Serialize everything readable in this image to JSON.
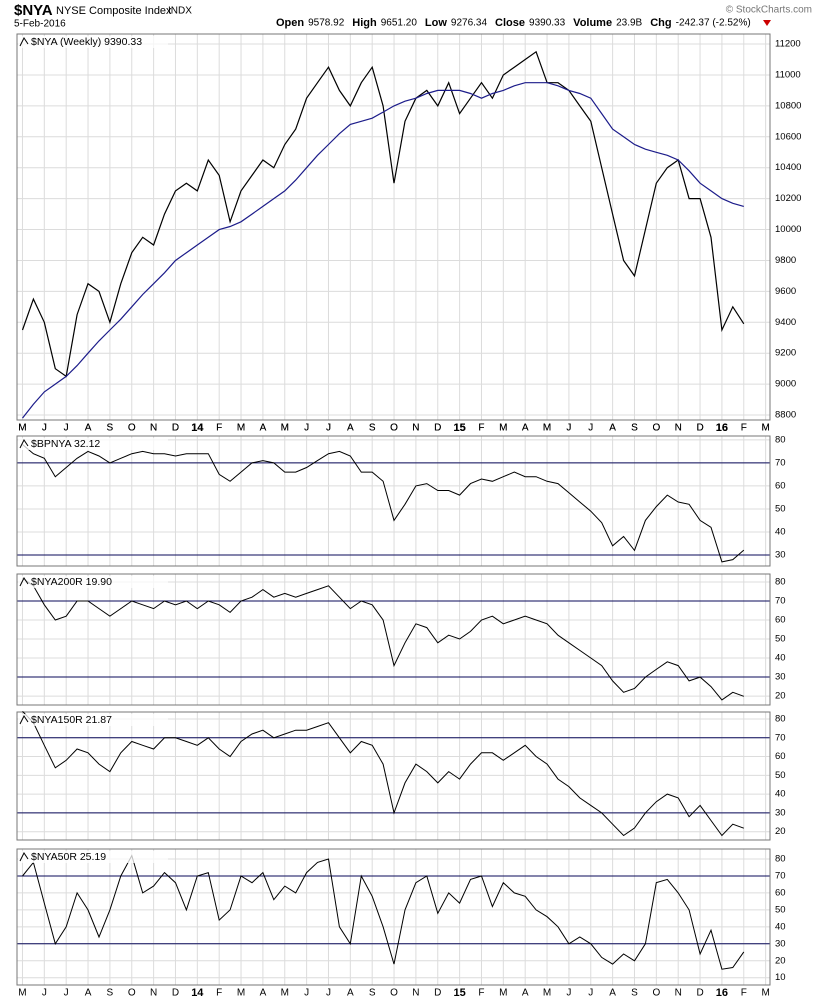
{
  "header": {
    "symbol": "$NYA",
    "name": "NYSE Composite Index",
    "exchange": "INDX",
    "date": "5-Feb-2016",
    "credit": "© StockCharts.com",
    "stats": [
      {
        "label": "Open",
        "value": "9578.92"
      },
      {
        "label": "High",
        "value": "9651.20"
      },
      {
        "label": "Low",
        "value": "9276.34"
      },
      {
        "label": "Close",
        "value": "9390.33"
      },
      {
        "label": "Volume",
        "value": "23.9B"
      },
      {
        "label": "Chg",
        "value": "-242.37 (-2.52%)"
      }
    ]
  },
  "chart_data": [
    {
      "type": "line",
      "label": "$NYA (Weekly) 9390.33",
      "x": [
        0,
        0.5,
        1,
        1.5,
        2,
        2.5,
        3,
        3.5,
        4,
        4.5,
        5,
        5.5,
        6,
        6.5,
        7,
        7.5,
        8,
        8.5,
        9,
        9.5,
        10,
        10.5,
        11,
        11.5,
        12,
        12.5,
        13,
        13.5,
        14,
        14.5,
        15,
        15.5,
        16,
        16.5,
        17,
        17.5,
        18,
        18.5,
        19,
        19.5,
        20,
        20.5,
        21,
        21.5,
        22,
        22.5,
        23,
        23.5,
        24,
        24.5,
        25,
        25.5,
        26,
        26.5,
        27,
        27.5,
        28,
        28.5,
        29,
        29.5,
        30,
        30.5,
        31,
        31.5,
        32,
        32.5,
        33
      ],
      "xlim": [
        -0.25,
        34.2
      ],
      "xticks": [
        {
          "value": 0,
          "label": "M"
        },
        {
          "value": 1,
          "label": "J"
        },
        {
          "value": 2,
          "label": "J"
        },
        {
          "value": 3,
          "label": "A"
        },
        {
          "value": 4,
          "label": "S"
        },
        {
          "value": 5,
          "label": "O"
        },
        {
          "value": 6,
          "label": "N"
        },
        {
          "value": 7,
          "label": "D"
        },
        {
          "value": 8,
          "label": "14"
        },
        {
          "value": 9,
          "label": "F"
        },
        {
          "value": 10,
          "label": "M"
        },
        {
          "value": 11,
          "label": "A"
        },
        {
          "value": 12,
          "label": "M"
        },
        {
          "value": 13,
          "label": "J"
        },
        {
          "value": 14,
          "label": "J"
        },
        {
          "value": 15,
          "label": "A"
        },
        {
          "value": 16,
          "label": "S"
        },
        {
          "value": 17,
          "label": "O"
        },
        {
          "value": 18,
          "label": "N"
        },
        {
          "value": 19,
          "label": "D"
        },
        {
          "value": 20,
          "label": "15"
        },
        {
          "value": 21,
          "label": "F"
        },
        {
          "value": 22,
          "label": "M"
        },
        {
          "value": 23,
          "label": "A"
        },
        {
          "value": 24,
          "label": "M"
        },
        {
          "value": 25,
          "label": "J"
        },
        {
          "value": 26,
          "label": "J"
        },
        {
          "value": 27,
          "label": "A"
        },
        {
          "value": 28,
          "label": "S"
        },
        {
          "value": 29,
          "label": "O"
        },
        {
          "value": 30,
          "label": "N"
        },
        {
          "value": 31,
          "label": "D"
        },
        {
          "value": 32,
          "label": "16"
        },
        {
          "value": 33,
          "label": "F"
        },
        {
          "value": 34,
          "label": "M"
        }
      ],
      "ylim": [
        8768,
        11265
      ],
      "yticks": [
        8800,
        9000,
        9200,
        9400,
        9600,
        9800,
        10000,
        10200,
        10400,
        10600,
        10800,
        11000,
        11200
      ],
      "grid": true,
      "series": [
        {
          "name": "Close",
          "color": "#000000",
          "values": [
            9350,
            9550,
            9400,
            9100,
            9050,
            9450,
            9650,
            9600,
            9400,
            9650,
            9850,
            9950,
            9900,
            10100,
            10250,
            10300,
            10250,
            10450,
            10350,
            10050,
            10250,
            10350,
            10450,
            10400,
            10550,
            10650,
            10850,
            10950,
            11050,
            10900,
            10800,
            10950,
            11050,
            10800,
            10300,
            10700,
            10850,
            10900,
            10800,
            10950,
            10750,
            10850,
            10950,
            10850,
            11000,
            11050,
            11100,
            11150,
            10950,
            10950,
            10900,
            10800,
            10700,
            10400,
            10100,
            9800,
            9700,
            10000,
            10300,
            10400,
            10450,
            10200,
            10200,
            9950,
            9350,
            9500,
            9390.33
          ]
        },
        {
          "name": "MA",
          "color": "#1c1c8a",
          "values": [
            8780,
            8870,
            8950,
            9000,
            9050,
            9120,
            9200,
            9280,
            9350,
            9420,
            9500,
            9580,
            9650,
            9720,
            9800,
            9850,
            9900,
            9950,
            10000,
            10020,
            10050,
            10100,
            10150,
            10200,
            10250,
            10320,
            10400,
            10480,
            10550,
            10620,
            10680,
            10700,
            10720,
            10760,
            10800,
            10830,
            10850,
            10880,
            10900,
            10900,
            10900,
            10880,
            10850,
            10880,
            10900,
            10930,
            10950,
            10950,
            10950,
            10930,
            10900,
            10880,
            10850,
            10750,
            10650,
            10600,
            10550,
            10520,
            10500,
            10480,
            10450,
            10380,
            10300,
            10250,
            10200,
            10170,
            10150
          ]
        }
      ]
    },
    {
      "type": "line",
      "label": "$BPNYA 32.12",
      "x": [
        0,
        0.5,
        1,
        1.5,
        2,
        2.5,
        3,
        3.5,
        4,
        4.5,
        5,
        5.5,
        6,
        6.5,
        7,
        7.5,
        8,
        8.5,
        9,
        9.5,
        10,
        10.5,
        11,
        11.5,
        12,
        12.5,
        13,
        13.5,
        14,
        14.5,
        15,
        15.5,
        16,
        16.5,
        17,
        17.5,
        18,
        18.5,
        19,
        19.5,
        20,
        20.5,
        21,
        21.5,
        22,
        22.5,
        23,
        23.5,
        24,
        24.5,
        25,
        25.5,
        26,
        26.5,
        27,
        27.5,
        28,
        28.5,
        29,
        29.5,
        30,
        30.5,
        31,
        31.5,
        32,
        32.5,
        33
      ],
      "xlim": [
        -0.25,
        34.2
      ],
      "ylim": [
        25.2,
        81.7
      ],
      "yticks": [
        30,
        40,
        50,
        60,
        70,
        80
      ],
      "levels": [
        70,
        30
      ],
      "level_color": "#0a0a5a",
      "series": [
        {
          "name": "$BPNYA",
          "color": "#000000",
          "values": [
            78,
            74,
            72,
            64,
            68,
            72,
            75,
            73,
            70,
            72,
            74,
            75,
            74,
            74,
            73,
            74,
            74,
            74,
            65,
            62,
            66,
            70,
            71,
            70,
            66,
            66,
            68,
            71,
            74,
            75,
            73,
            66,
            66,
            62,
            45,
            52,
            60,
            61,
            58,
            58,
            56,
            61,
            63,
            62,
            64,
            66,
            64,
            64,
            62,
            61,
            57,
            53,
            49,
            44,
            34,
            38,
            32,
            45,
            51,
            56,
            53,
            52,
            45,
            42,
            27,
            28,
            32.12
          ]
        }
      ]
    },
    {
      "type": "line",
      "label": "$NYA200R 19.90",
      "x": [
        0,
        0.5,
        1,
        1.5,
        2,
        2.5,
        3,
        3.5,
        4,
        4.5,
        5,
        5.5,
        6,
        6.5,
        7,
        7.5,
        8,
        8.5,
        9,
        9.5,
        10,
        10.5,
        11,
        11.5,
        12,
        12.5,
        13,
        13.5,
        14,
        14.5,
        15,
        15.5,
        16,
        16.5,
        17,
        17.5,
        18,
        18.5,
        19,
        19.5,
        20,
        20.5,
        21,
        21.5,
        22,
        22.5,
        23,
        23.5,
        24,
        24.5,
        25,
        25.5,
        26,
        26.5,
        27,
        27.5,
        28,
        28.5,
        29,
        29.5,
        30,
        30.5,
        31,
        31.5,
        32,
        32.5,
        33
      ],
      "xlim": [
        -0.25,
        34.2
      ],
      "ylim": [
        15.3,
        84.2
      ],
      "yticks": [
        20,
        30,
        40,
        50,
        60,
        70,
        80
      ],
      "levels": [
        70,
        30
      ],
      "level_color": "#0a0a5a",
      "series": [
        {
          "name": "$NYA200R",
          "color": "#000000",
          "values": [
            82,
            78,
            68,
            60,
            62,
            70,
            70,
            66,
            62,
            66,
            70,
            68,
            66,
            70,
            68,
            70,
            66,
            70,
            68,
            64,
            70,
            72,
            76,
            72,
            74,
            72,
            74,
            76,
            78,
            72,
            66,
            70,
            68,
            60,
            36,
            48,
            58,
            56,
            48,
            52,
            50,
            54,
            60,
            62,
            58,
            60,
            62,
            60,
            58,
            52,
            48,
            44,
            40,
            36,
            28,
            22,
            24,
            30,
            34,
            38,
            36,
            28,
            30,
            25,
            18,
            22,
            19.9
          ]
        }
      ]
    },
    {
      "type": "line",
      "label": "$NYA150R 21.87",
      "x": [
        0,
        0.5,
        1,
        1.5,
        2,
        2.5,
        3,
        3.5,
        4,
        4.5,
        5,
        5.5,
        6,
        6.5,
        7,
        7.5,
        8,
        8.5,
        9,
        9.5,
        10,
        10.5,
        11,
        11.5,
        12,
        12.5,
        13,
        13.5,
        14,
        14.5,
        15,
        15.5,
        16,
        16.5,
        17,
        17.5,
        18,
        18.5,
        19,
        19.5,
        20,
        20.5,
        21,
        21.5,
        22,
        22.5,
        23,
        23.5,
        24,
        24.5,
        25,
        25.5,
        26,
        26.5,
        27,
        27.5,
        28,
        28.5,
        29,
        29.5,
        30,
        30.5,
        31,
        31.5,
        32,
        32.5,
        33
      ],
      "xlim": [
        -0.25,
        34.2
      ],
      "ylim": [
        15.6,
        83.7
      ],
      "yticks": [
        20,
        30,
        40,
        50,
        60,
        70,
        80
      ],
      "levels": [
        70,
        30
      ],
      "level_color": "#0a0a5a",
      "series": [
        {
          "name": "$NYA150R",
          "color": "#000000",
          "values": [
            84,
            78,
            66,
            54,
            58,
            64,
            62,
            56,
            52,
            62,
            68,
            66,
            64,
            70,
            70,
            68,
            66,
            70,
            64,
            60,
            68,
            72,
            74,
            70,
            72,
            74,
            74,
            76,
            78,
            70,
            62,
            68,
            66,
            56,
            30,
            46,
            56,
            52,
            46,
            52,
            48,
            56,
            62,
            62,
            58,
            62,
            66,
            60,
            56,
            48,
            44,
            38,
            34,
            30,
            24,
            18,
            22,
            30,
            36,
            40,
            38,
            28,
            34,
            26,
            18,
            24,
            21.87
          ]
        }
      ]
    },
    {
      "type": "line",
      "label": "$NYA50R 25.19",
      "x": [
        0,
        0.5,
        1,
        1.5,
        2,
        2.5,
        3,
        3.5,
        4,
        4.5,
        5,
        5.5,
        6,
        6.5,
        7,
        7.5,
        8,
        8.5,
        9,
        9.5,
        10,
        10.5,
        11,
        11.5,
        12,
        12.5,
        13,
        13.5,
        14,
        14.5,
        15,
        15.5,
        16,
        16.5,
        17,
        17.5,
        18,
        18.5,
        19,
        19.5,
        20,
        20.5,
        21,
        21.5,
        22,
        22.5,
        23,
        23.5,
        24,
        24.5,
        25,
        25.5,
        26,
        26.5,
        27,
        27.5,
        28,
        28.5,
        29,
        29.5,
        30,
        30.5,
        31,
        31.5,
        32,
        32.5,
        33
      ],
      "xlim": [
        -0.25,
        34.2
      ],
      "ylim": [
        5.7,
        85.9
      ],
      "yticks": [
        10,
        20,
        30,
        40,
        50,
        60,
        70,
        80
      ],
      "levels": [
        70,
        30
      ],
      "level_color": "#0a0a5a",
      "xticks": [
        {
          "value": 0,
          "label": "M"
        },
        {
          "value": 1,
          "label": "J"
        },
        {
          "value": 2,
          "label": "J"
        },
        {
          "value": 3,
          "label": "A"
        },
        {
          "value": 4,
          "label": "S"
        },
        {
          "value": 5,
          "label": "O"
        },
        {
          "value": 6,
          "label": "N"
        },
        {
          "value": 7,
          "label": "D"
        },
        {
          "value": 8,
          "label": "14"
        },
        {
          "value": 9,
          "label": "F"
        },
        {
          "value": 10,
          "label": "M"
        },
        {
          "value": 11,
          "label": "A"
        },
        {
          "value": 12,
          "label": "M"
        },
        {
          "value": 13,
          "label": "J"
        },
        {
          "value": 14,
          "label": "J"
        },
        {
          "value": 15,
          "label": "A"
        },
        {
          "value": 16,
          "label": "S"
        },
        {
          "value": 17,
          "label": "O"
        },
        {
          "value": 18,
          "label": "N"
        },
        {
          "value": 19,
          "label": "D"
        },
        {
          "value": 20,
          "label": "15"
        },
        {
          "value": 21,
          "label": "F"
        },
        {
          "value": 22,
          "label": "M"
        },
        {
          "value": 23,
          "label": "A"
        },
        {
          "value": 24,
          "label": "M"
        },
        {
          "value": 25,
          "label": "J"
        },
        {
          "value": 26,
          "label": "J"
        },
        {
          "value": 27,
          "label": "A"
        },
        {
          "value": 28,
          "label": "S"
        },
        {
          "value": 29,
          "label": "O"
        },
        {
          "value": 30,
          "label": "N"
        },
        {
          "value": 31,
          "label": "D"
        },
        {
          "value": 32,
          "label": "16"
        },
        {
          "value": 33,
          "label": "F"
        },
        {
          "value": 34,
          "label": "M"
        }
      ],
      "series": [
        {
          "name": "$NYA50R",
          "color": "#000000",
          "values": [
            70,
            78,
            54,
            30,
            40,
            60,
            50,
            34,
            50,
            70,
            82,
            60,
            64,
            72,
            66,
            50,
            70,
            72,
            44,
            50,
            70,
            66,
            72,
            56,
            64,
            60,
            72,
            78,
            80,
            40,
            30,
            70,
            58,
            40,
            18,
            50,
            66,
            70,
            48,
            60,
            54,
            68,
            70,
            52,
            66,
            60,
            58,
            50,
            46,
            40,
            30,
            34,
            30,
            22,
            18,
            24,
            20,
            30,
            66,
            68,
            60,
            50,
            24,
            38,
            15,
            16,
            25.19
          ]
        }
      ]
    }
  ]
}
